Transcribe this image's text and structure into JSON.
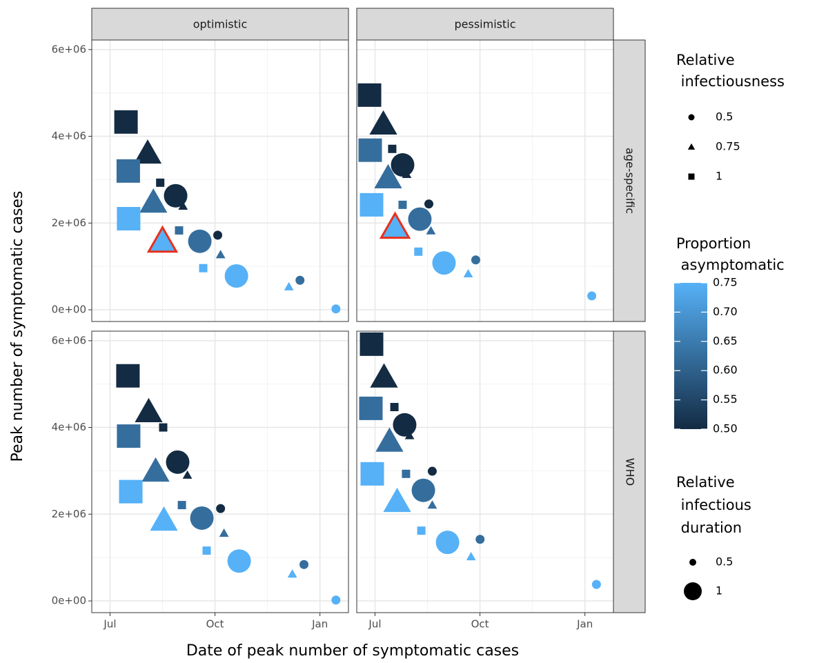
{
  "chart_data": {
    "type": "scatter",
    "x_label": "Date of peak number of symptomatic cases",
    "y_label": "Peak number of symptomatic cases",
    "xlim": [
      -16,
      209
    ],
    "xticks": [
      {
        "value": 0,
        "label": "Jul"
      },
      {
        "value": 92,
        "label": "Oct"
      },
      {
        "value": 184,
        "label": "Jan"
      }
    ],
    "ylim": [
      -270000,
      6220000
    ],
    "yticks": [
      {
        "value": 0,
        "label": "0e+00"
      },
      {
        "value": 2000000,
        "label": "2e+06"
      },
      {
        "value": 4000000,
        "label": "4e+06"
      },
      {
        "value": 6000000,
        "label": "6e+06"
      }
    ],
    "grid": true,
    "columns": [
      "optimistic",
      "pessimistic"
    ],
    "rows": [
      "age-specific",
      "WHO"
    ],
    "highlight_color": "#e8301c",
    "panels": [
      [
        {
          "x": [
            14,
            33,
            16,
            44,
            57.5,
            38,
            64,
            16.3,
            60.5,
            94.4,
            46,
            78.7,
            96.9,
            81.7,
            110.8,
            166.5,
            156.8,
            198
          ],
          "y": [
            4330000,
            3610000,
            3200000,
            2930000,
            2630000,
            2480000,
            2390000,
            2100000,
            1830000,
            1720000,
            1580000,
            1580000,
            1270000,
            960000,
            780000,
            680000,
            530000,
            20000
          ],
          "infectiousness": [
            1,
            0.75,
            1,
            1,
            0.5,
            0.75,
            0.75,
            1,
            1,
            0.5,
            0.75,
            0.5,
            0.75,
            1,
            0.5,
            0.5,
            0.75,
            0.5
          ],
          "duration": [
            1,
            1,
            1,
            0.5,
            1,
            1,
            0.5,
            1,
            0.5,
            0.5,
            1,
            1,
            0.5,
            0.5,
            1,
            0.5,
            0.5,
            0.5
          ],
          "asymptomatic": [
            0.5,
            0.5,
            0.625,
            0.5,
            0.5,
            0.625,
            0.5,
            0.75,
            0.625,
            0.5,
            0.75,
            0.625,
            0.625,
            0.75,
            0.75,
            0.625,
            0.75,
            0.75
          ],
          "highlight": 10
        },
        {
          "x": [
            -4.8,
            7.3,
            -4.2,
            15.1,
            24.2,
            11.5,
            27.8,
            -3,
            24.2,
            47.2,
            17.6,
            39.3,
            49,
            38,
            60.5,
            88.3,
            81.7,
            190
          ],
          "y": [
            4950000,
            4280000,
            3680000,
            3710000,
            3340000,
            3040000,
            3120000,
            2420000,
            2420000,
            2440000,
            1900000,
            2090000,
            1820000,
            1340000,
            1080000,
            1150000,
            830000,
            320000
          ],
          "infectiousness": [
            1,
            0.75,
            1,
            1,
            0.5,
            0.75,
            0.75,
            1,
            1,
            0.5,
            0.75,
            0.5,
            0.75,
            1,
            0.5,
            0.5,
            0.75,
            0.5
          ],
          "duration": [
            1,
            1,
            1,
            0.5,
            1,
            1,
            0.5,
            1,
            0.5,
            0.5,
            1,
            1,
            0.5,
            0.5,
            1,
            0.5,
            0.5,
            0.5
          ],
          "asymptomatic": [
            0.5,
            0.5,
            0.625,
            0.5,
            0.5,
            0.625,
            0.5,
            0.75,
            0.625,
            0.5,
            0.75,
            0.625,
            0.625,
            0.75,
            0.75,
            0.625,
            0.75,
            0.75
          ],
          "highlight": 10
        }
      ],
      [
        {
          "x": [
            15.7,
            33.9,
            16.3,
            46.6,
            59.3,
            40,
            67.8,
            18.2,
            63,
            96.9,
            47.2,
            80.5,
            99.9,
            84.7,
            113.2,
            170,
            159.8,
            198
          ],
          "y": [
            5190000,
            4360000,
            3800000,
            4000000,
            3200000,
            2990000,
            2900000,
            2520000,
            2210000,
            2130000,
            1860000,
            1910000,
            1560000,
            1160000,
            920000,
            840000,
            620000,
            20000
          ],
          "infectiousness": [
            1,
            0.75,
            1,
            1,
            0.5,
            0.75,
            0.75,
            1,
            1,
            0.5,
            0.75,
            0.5,
            0.75,
            1,
            0.5,
            0.5,
            0.75,
            0.5
          ],
          "duration": [
            1,
            1,
            1,
            0.5,
            1,
            1,
            0.5,
            1,
            0.5,
            0.5,
            1,
            1,
            0.5,
            0.5,
            1,
            0.5,
            0.5,
            0.5
          ],
          "asymptomatic": [
            0.5,
            0.5,
            0.625,
            0.5,
            0.5,
            0.625,
            0.5,
            0.75,
            0.625,
            0.5,
            0.75,
            0.625,
            0.625,
            0.75,
            0.75,
            0.625,
            0.75,
            0.75
          ]
        },
        {
          "x": [
            -3,
            7.9,
            -3.6,
            17,
            26,
            12.7,
            30.3,
            -2.4,
            27.2,
            50.2,
            19.4,
            42.4,
            50.2,
            40.6,
            63.6,
            92.1,
            84.2,
            194.1
          ],
          "y": [
            5920000,
            5160000,
            4440000,
            4470000,
            4060000,
            3680000,
            3810000,
            2930000,
            2930000,
            2990000,
            2290000,
            2550000,
            2210000,
            1620000,
            1350000,
            1420000,
            1020000,
            380000
          ],
          "infectiousness": [
            1,
            0.75,
            1,
            1,
            0.5,
            0.75,
            0.75,
            1,
            1,
            0.5,
            0.75,
            0.5,
            0.75,
            1,
            0.5,
            0.5,
            0.75,
            0.5
          ],
          "duration": [
            1,
            1,
            1,
            0.5,
            1,
            1,
            0.5,
            1,
            0.5,
            0.5,
            1,
            1,
            0.5,
            0.5,
            1,
            0.5,
            0.5,
            0.5
          ],
          "asymptomatic": [
            0.5,
            0.5,
            0.625,
            0.5,
            0.5,
            0.625,
            0.5,
            0.75,
            0.625,
            0.5,
            0.75,
            0.625,
            0.625,
            0.75,
            0.75,
            0.625,
            0.75,
            0.75
          ]
        }
      ]
    ],
    "shape_legend": {
      "title": [
        "Relative",
        " infectiousness"
      ],
      "values": [
        0.5,
        0.75,
        1
      ],
      "shapes": [
        "circle",
        "triangle",
        "square"
      ]
    },
    "color_scale": {
      "title": [
        "Proportion",
        " asymptomatic"
      ],
      "low": "#132B43",
      "high": "#56B1F7",
      "lim": [
        0.5,
        0.75
      ],
      "ticks": [
        {
          "value": 0.5,
          "label": "0.50"
        },
        0.55,
        {
          "value": 0.6,
          "label": "0.60"
        },
        0.65,
        {
          "value": 0.7,
          "label": "0.70"
        },
        0.75
      ]
    },
    "size_legend": {
      "title": [
        "Relative",
        " infectious",
        " duration"
      ],
      "values": [
        0.5,
        1
      ]
    }
  }
}
